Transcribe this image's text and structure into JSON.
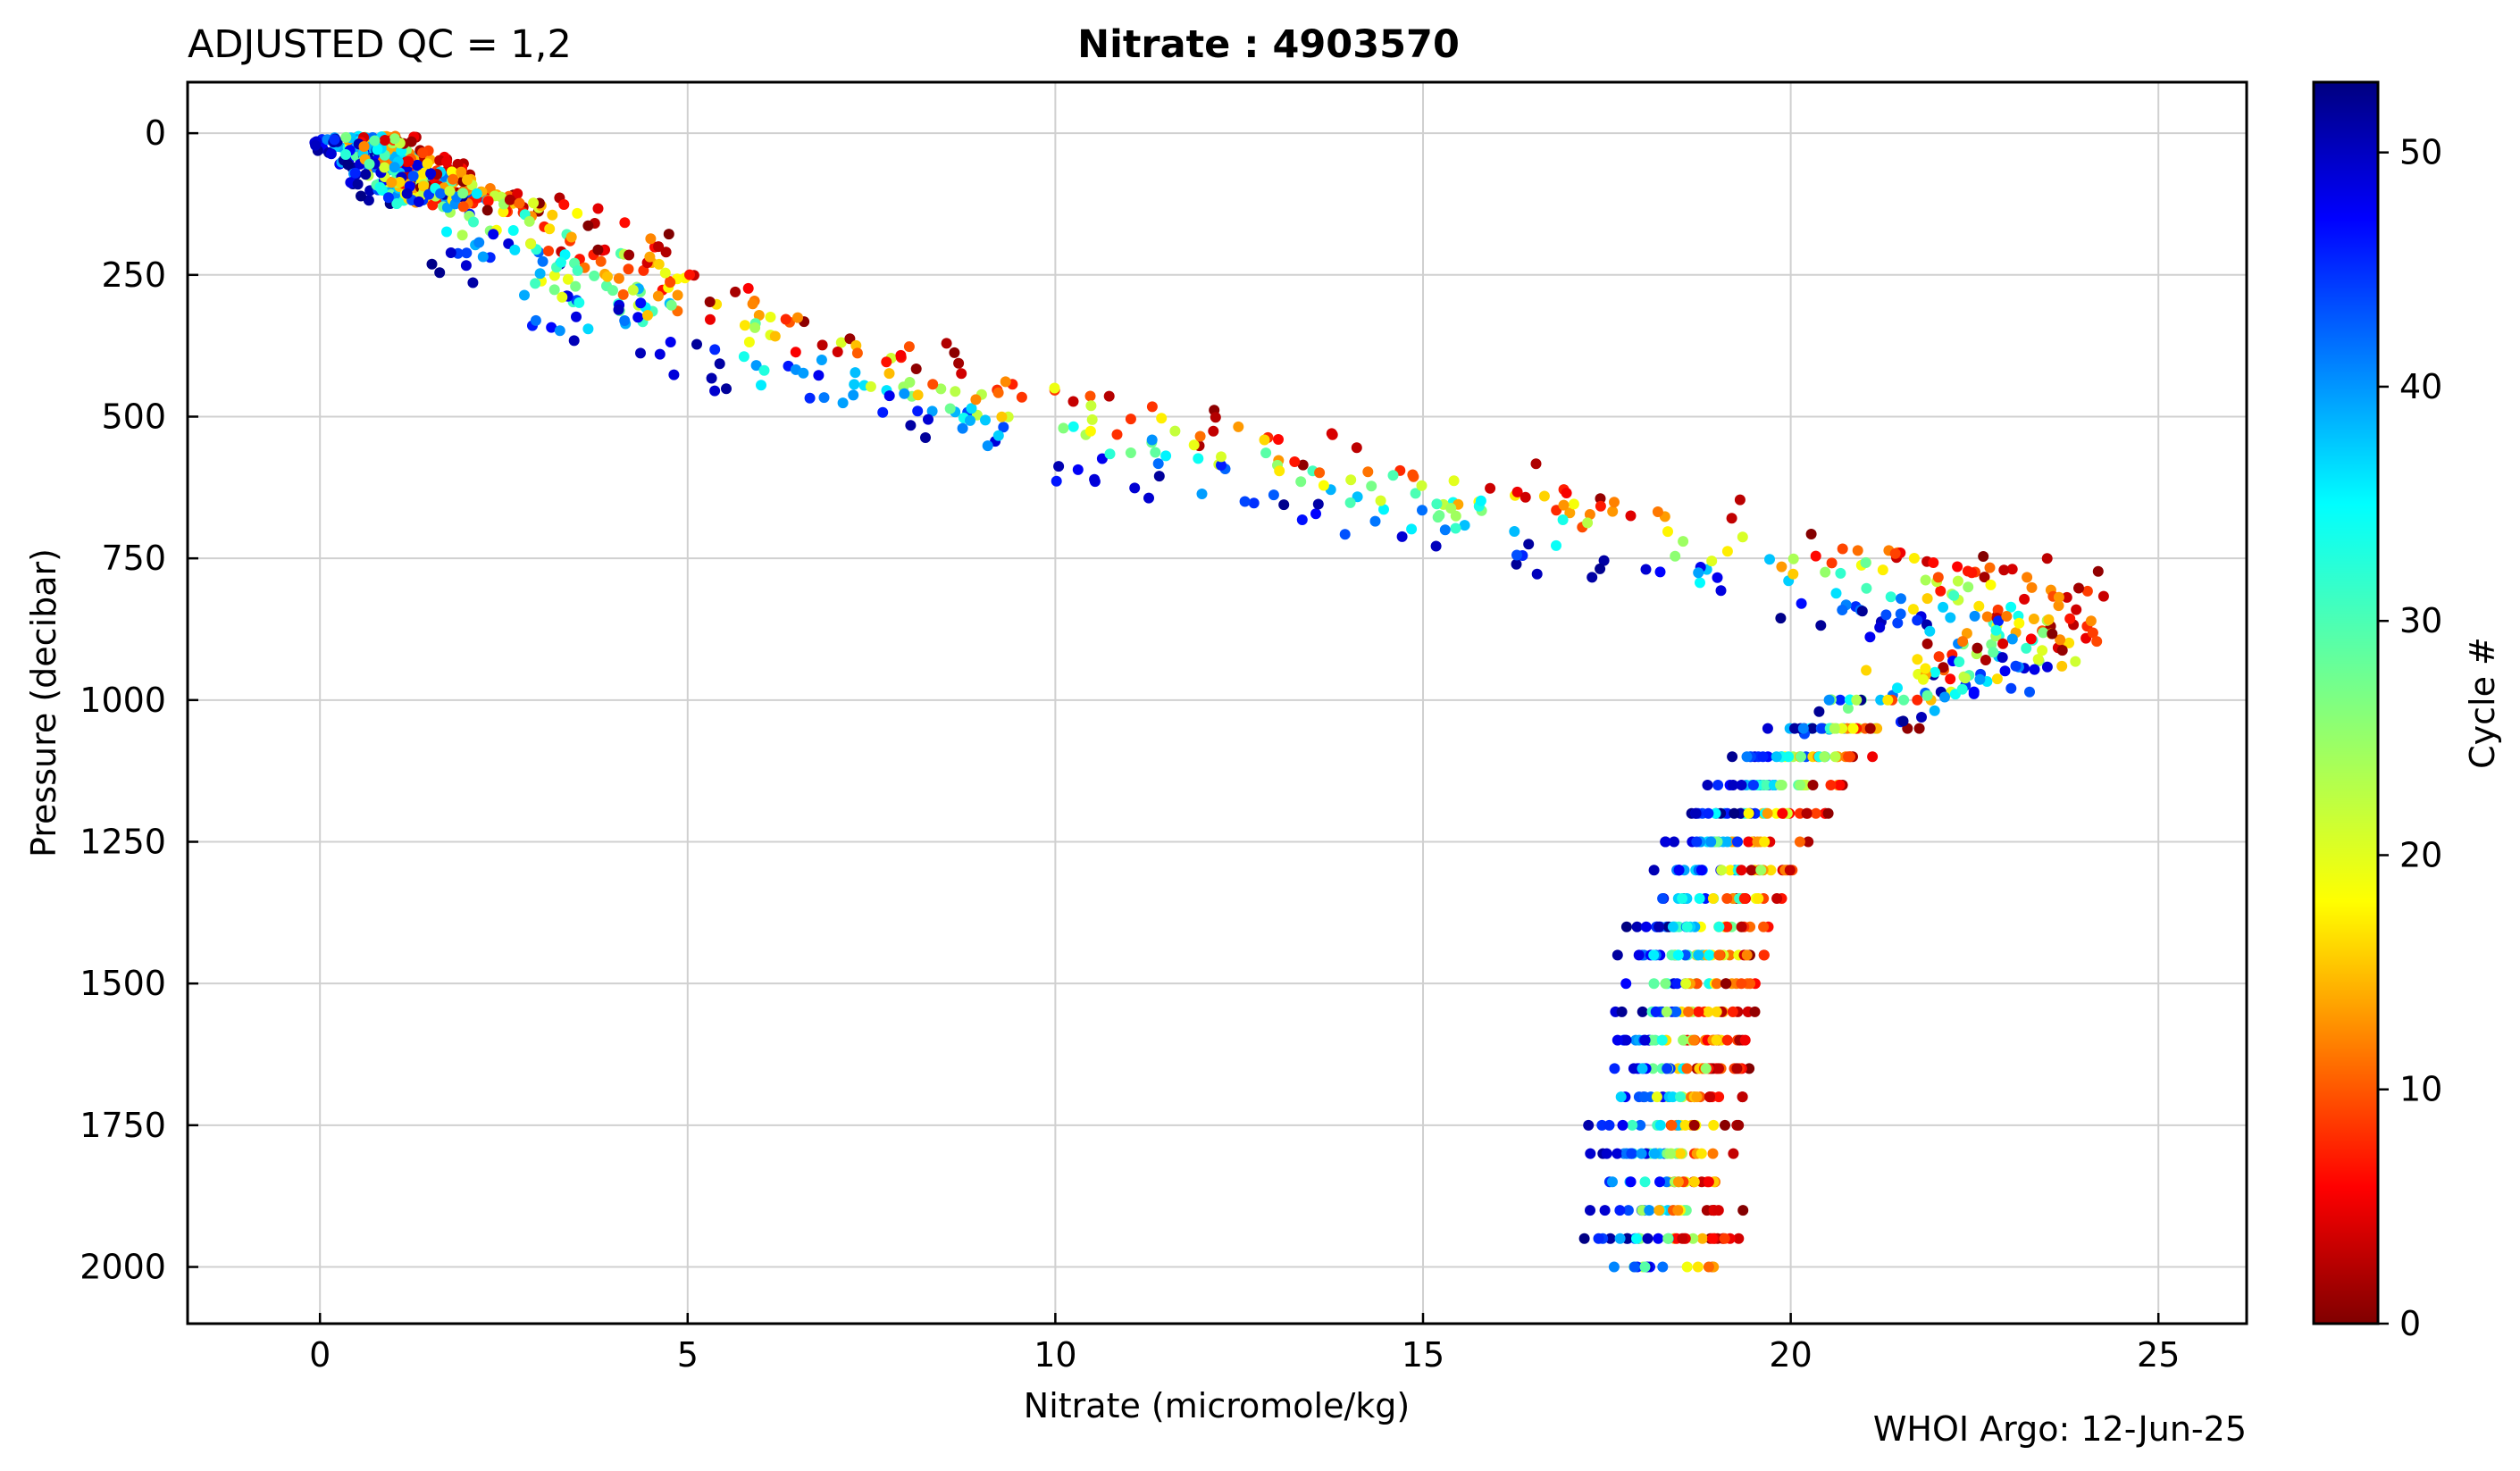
{
  "header": {
    "left": "ADJUSTED QC = 1,2",
    "title": "Nitrate : 4903570",
    "footer": "WHOI Argo: 12-Jun-25"
  },
  "colorbar": {
    "label": "Cycle #",
    "min": 0,
    "max": 53,
    "ticks": [
      "0",
      "10",
      "20",
      "30",
      "40",
      "50"
    ],
    "colormap": "jet"
  },
  "chart_data": {
    "type": "scatter",
    "xlabel": "Nitrate  (micromole/kg)",
    "ylabel": "Pressure  (decibar)",
    "xlim": [
      -1.8,
      26.2
    ],
    "ylim": [
      2100,
      -90
    ],
    "y_inverted": true,
    "grid": true,
    "xticks": [
      "0",
      "5",
      "10",
      "15",
      "20",
      "25"
    ],
    "yticks": [
      "0",
      "250",
      "500",
      "750",
      "1000",
      "1250",
      "1500",
      "1750",
      "2000"
    ],
    "color_by": "Cycle #",
    "profile_shape": [
      {
        "p": 0,
        "x": 0.5
      },
      {
        "p": 100,
        "x": 1.5
      },
      {
        "p": 200,
        "x": 3.0
      },
      {
        "p": 300,
        "x": 4.2
      },
      {
        "p": 400,
        "x": 6.5
      },
      {
        "p": 500,
        "x": 9.5
      },
      {
        "p": 600,
        "x": 13.0
      },
      {
        "p": 700,
        "x": 17.0
      },
      {
        "p": 800,
        "x": 21.5
      },
      {
        "p": 880,
        "x": 23.5
      },
      {
        "p": 950,
        "x": 22.5
      },
      {
        "p": 1000,
        "x": 21.2
      },
      {
        "p": 1100,
        "x": 20.2
      },
      {
        "p": 1250,
        "x": 19.3
      },
      {
        "p": 1500,
        "x": 18.6
      },
      {
        "p": 1750,
        "x": 18.3
      },
      {
        "p": 2000,
        "x": 18.3
      }
    ],
    "series": [
      {
        "cycle_range": [
          0,
          53
        ],
        "count": 1600
      }
    ]
  }
}
